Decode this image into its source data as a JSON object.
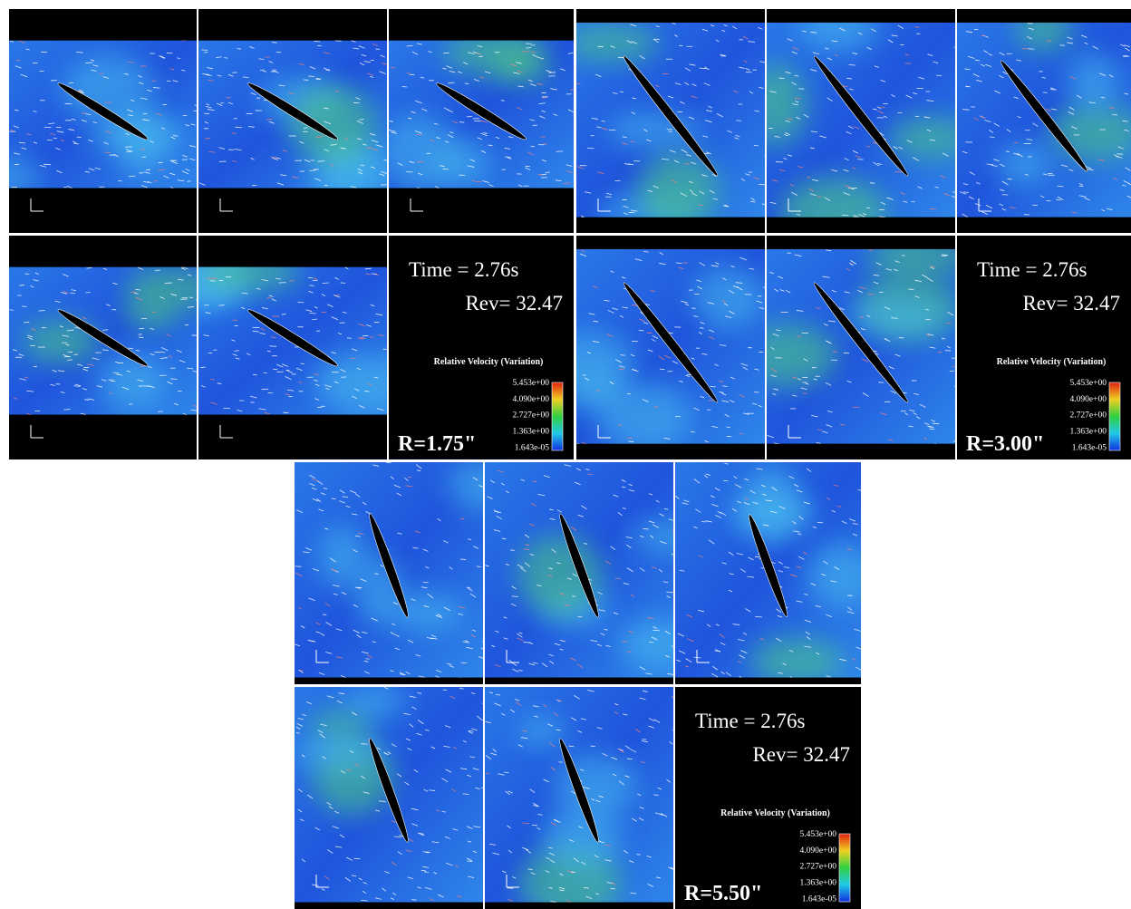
{
  "groups": [
    {
      "time": "Time = 2.76s",
      "rev": "Rev= 32.47",
      "legend_title": "Relative Velocity (Variation)",
      "legend_ticks": [
        "5.453e+00",
        "4.090e+00",
        "2.727e+00",
        "1.363e+00",
        "1.643e-05"
      ],
      "radius": "R=1.75\""
    },
    {
      "time": "Time = 2.76s",
      "rev": "Rev= 32.47",
      "legend_title": "Relative Velocity (Variation)",
      "legend_ticks": [
        "5.453e+00",
        "4.090e+00",
        "2.727e+00",
        "1.363e+00",
        "1.643e-05"
      ],
      "radius": "R=3.00\""
    },
    {
      "time": "Time = 2.76s",
      "rev": "Rev= 32.47",
      "legend_title": "Relative Velocity (Variation)",
      "legend_ticks": [
        "5.453e+00",
        "4.090e+00",
        "2.727e+00",
        "1.363e+00",
        "1.643e-05"
      ],
      "radius": "R=5.50\""
    }
  ]
}
